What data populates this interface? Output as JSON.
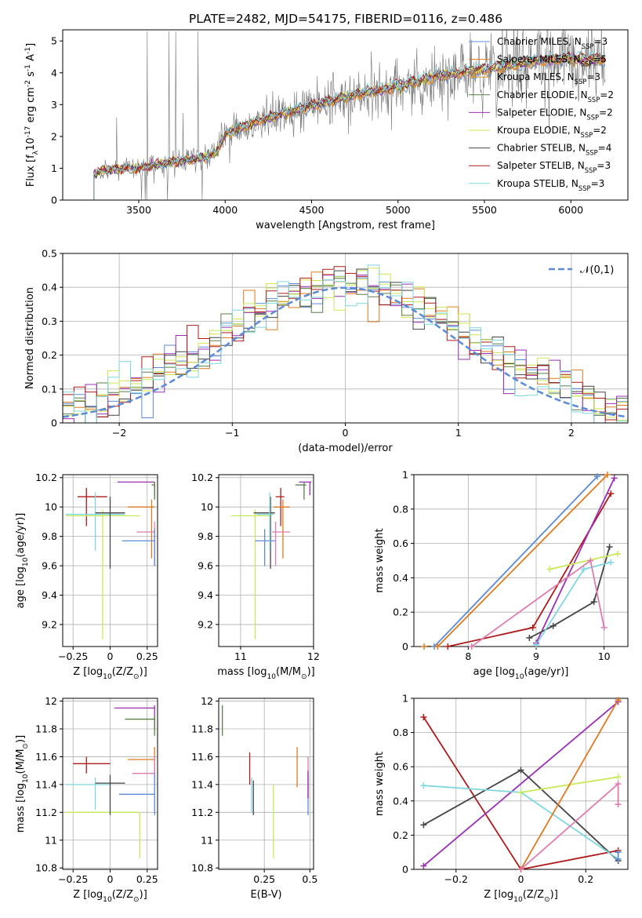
{
  "figure_title": "PLATE=2482, MJD=54175, FIBERID=0116, z=0.486",
  "colors": {
    "chabrier_miles": "#5b8bd8",
    "salpeter_miles": "#e07a1f",
    "kroupa_miles": "#e89c33",
    "chabrier_elodie": "#5a7f4a",
    "salpeter_elodie": "#9b2fb5",
    "kroupa_elodie": "#d6e24c",
    "chabrier_stelib": "#444444",
    "salpeter_stelib": "#b01a1a",
    "kroupa_stelib": "#7fd7e0",
    "pink": "#e07ab0",
    "lime": "#c8ea5a",
    "gauss": "#5b8bd8"
  },
  "chart_data": [
    {
      "id": "spectrum",
      "type": "line",
      "xlabel": "wavelength [Angstrom, rest frame]",
      "ylabel": "Flux [f$_\\lambda$10$^{-17}$ erg cm$^{-2}$ s$^{-1}$ A$^{-1}$]",
      "xlim": [
        3060,
        6330
      ],
      "ylim": [
        0,
        5.35
      ],
      "xticks": [
        3500,
        4000,
        4500,
        5000,
        5500,
        6000
      ],
      "yticks": [
        0,
        1,
        2,
        3,
        4,
        5
      ],
      "grid": false,
      "legend_position": "top-right",
      "legend": [
        "Chabrier MILES, N$_{SSP}$=3",
        "Salpeter MILES, N$_{SSP}$=5",
        "Kroupa MILES, N$_{SSP}$=3",
        "Chabrier ELODIE, N$_{SSP}$=2",
        "Salpeter ELODIE, N$_{SSP}$=2",
        "Kroupa ELODIE, N$_{SSP}$=2",
        "Chabrier STELIB, N$_{SSP}$=4",
        "Salpeter STELIB, N$_{SSP}$=3",
        "Kroupa STELIB, N$_{SSP}$=3"
      ],
      "model_continuum": {
        "x": [
          3240,
          3300,
          3500,
          3700,
          3900,
          3950,
          4000,
          4200,
          4500,
          4800,
          5000,
          5200,
          5500,
          5800,
          6000,
          6200
        ],
        "y": [
          0.8,
          0.95,
          1.0,
          1.2,
          1.35,
          1.5,
          2.05,
          2.5,
          2.95,
          3.35,
          3.55,
          3.85,
          4.1,
          4.35,
          4.45,
          4.4
        ]
      }
    },
    {
      "id": "residuals",
      "type": "line",
      "xlabel": "(data-model)/error",
      "ylabel": "Normed distribution",
      "xlim": [
        -2.5,
        2.5
      ],
      "ylim": [
        0,
        0.5
      ],
      "xticks": [
        -2,
        -1,
        0,
        1,
        2
      ],
      "yticks": [
        0.0,
        0.1,
        0.2,
        0.3,
        0.4,
        0.5
      ],
      "grid": true,
      "legend_position": "top-right",
      "legend": [
        "$\\mathcal{N}(0,1)$"
      ]
    },
    {
      "id": "age_vs_Z",
      "type": "scatter",
      "xlabel": "Z [log$_{10}$($Z/Z_\\odot$)]",
      "ylabel": "age  [log$_{10}$($age/yr$)]",
      "xlim": [
        -0.32,
        0.32
      ],
      "ylim": [
        9.05,
        10.22
      ],
      "xticks": [
        -0.25,
        0.0,
        0.25
      ],
      "yticks": [
        9.2,
        9.4,
        9.6,
        9.8,
        10.0,
        10.2
      ],
      "grid": true,
      "points": [
        {
          "c": "salpeter_stelib",
          "x": -0.16,
          "xe": [
            -0.22,
            -0.02
          ],
          "y": 10.07,
          "ye": [
            9.87,
            10.13
          ]
        },
        {
          "c": "kroupa_stelib",
          "x": -0.1,
          "xe": [
            -0.3,
            0.1
          ],
          "y": 9.95,
          "ye": [
            9.7,
            10.1
          ]
        },
        {
          "c": "lime",
          "x": -0.05,
          "xe": [
            -0.3,
            0.2
          ],
          "y": 9.94,
          "ye": [
            9.1,
            9.98
          ]
        },
        {
          "c": "chabrier_stelib",
          "x": 0.0,
          "xe": [
            -0.1,
            0.1
          ],
          "y": 9.96,
          "ye": [
            9.58,
            10.07
          ]
        },
        {
          "c": "salpeter_elodie",
          "x": 0.3,
          "xe": [
            0.05,
            0.3
          ],
          "y": 10.17,
          "ye": [
            10.08,
            10.17
          ]
        },
        {
          "c": "chabrier_elodie",
          "x": 0.3,
          "xe": [
            0.28,
            0.3
          ],
          "y": 10.15,
          "ye": [
            10.05,
            10.17
          ]
        },
        {
          "c": "salpeter_miles",
          "x": 0.28,
          "xe": [
            0.12,
            0.3
          ],
          "y": 10.0,
          "ye": [
            9.65,
            10.05
          ]
        },
        {
          "c": "pink",
          "x": 0.3,
          "xe": [
            0.18,
            0.3
          ],
          "y": 9.83,
          "ye": [
            9.6,
            9.9
          ]
        },
        {
          "c": "chabrier_miles",
          "x": 0.3,
          "xe": [
            0.08,
            0.3
          ],
          "y": 9.77,
          "ye": [
            9.6,
            9.85
          ]
        }
      ]
    },
    {
      "id": "age_vs_mass",
      "type": "scatter",
      "xlabel": "mass [log$_{10}$($M/M_\\odot$)]",
      "ylabel": "",
      "xlim": [
        10.7,
        12.0
      ],
      "ylim": [
        9.05,
        10.22
      ],
      "xticks": [
        11,
        12
      ],
      "yticks": [
        9.2,
        9.4,
        9.6,
        9.8,
        10.0,
        10.2
      ],
      "grid": true,
      "points": [
        {
          "c": "lime",
          "x": 11.2,
          "xe": [
            10.87,
            11.4
          ],
          "y": 9.94,
          "ye": [
            9.1,
            9.98
          ]
        },
        {
          "c": "chabrier_stelib",
          "x": 11.41,
          "xe": [
            11.18,
            11.47
          ],
          "y": 9.96,
          "ye": [
            9.58,
            10.07
          ]
        },
        {
          "c": "chabrier_miles",
          "x": 11.33,
          "xe": [
            11.2,
            11.48
          ],
          "y": 9.77,
          "ye": [
            9.6,
            9.85
          ]
        },
        {
          "c": "kroupa_stelib",
          "x": 11.4,
          "xe": [
            11.22,
            11.45
          ],
          "y": 9.95,
          "ye": [
            9.7,
            10.1
          ]
        },
        {
          "c": "salpeter_stelib",
          "x": 11.55,
          "xe": [
            11.48,
            11.6
          ],
          "y": 10.07,
          "ye": [
            9.87,
            10.13
          ]
        },
        {
          "c": "salpeter_miles",
          "x": 11.58,
          "xe": [
            11.45,
            11.67
          ],
          "y": 10.0,
          "ye": [
            9.65,
            10.05
          ]
        },
        {
          "c": "pink",
          "x": 11.48,
          "xe": [
            11.43,
            11.68
          ],
          "y": 9.83,
          "ye": [
            9.6,
            9.9
          ]
        },
        {
          "c": "salpeter_elodie",
          "x": 11.95,
          "xe": [
            11.8,
            11.97
          ],
          "y": 10.17,
          "ye": [
            10.08,
            10.17
          ]
        },
        {
          "c": "chabrier_elodie",
          "x": 11.87,
          "xe": [
            11.75,
            11.9
          ],
          "y": 10.15,
          "ye": [
            10.05,
            10.17
          ]
        }
      ]
    },
    {
      "id": "weight_vs_age",
      "type": "line",
      "xlabel": "age  [log$_{10}$($age/yr$)]",
      "ylabel": "mass weight",
      "xlim": [
        7.2,
        10.35
      ],
      "ylim": [
        0,
        1.0
      ],
      "xticks": [
        8,
        9,
        10
      ],
      "yticks": [
        0.0,
        0.2,
        0.4,
        0.6,
        0.8,
        1.0
      ],
      "grid": true,
      "series": [
        {
          "c": "chabrier_miles",
          "x": [
            7.5,
            9.9
          ],
          "y": [
            0.0,
            0.99
          ]
        },
        {
          "c": "salpeter_miles",
          "x": [
            7.35,
            7.55,
            10.05
          ],
          "y": [
            0.0,
            0.0,
            1.0
          ]
        },
        {
          "c": "salpeter_stelib",
          "x": [
            7.7,
            8.95,
            10.1
          ],
          "y": [
            0.0,
            0.11,
            0.89
          ]
        },
        {
          "c": "salpeter_elodie",
          "x": [
            9.0,
            10.15
          ],
          "y": [
            0.02,
            0.98
          ]
        },
        {
          "c": "chabrier_stelib",
          "x": [
            8.9,
            9.25,
            9.85,
            10.08
          ],
          "y": [
            0.05,
            0.12,
            0.26,
            0.58
          ]
        },
        {
          "c": "lime",
          "x": [
            9.2,
            10.2
          ],
          "y": [
            0.45,
            0.54
          ]
        },
        {
          "c": "kroupa_stelib",
          "x": [
            9.0,
            9.7,
            10.1
          ],
          "y": [
            0.01,
            0.45,
            0.49
          ]
        },
        {
          "c": "pink",
          "x": [
            8.05,
            9.8,
            10.0
          ],
          "y": [
            0.0,
            0.5,
            0.11
          ]
        }
      ]
    },
    {
      "id": "mass_vs_Z",
      "type": "scatter",
      "xlabel": "Z [log$_{10}$($Z/Z_\\odot$)]",
      "ylabel": "mass [log$_{10}$($M/M_\\odot$)]",
      "xlim": [
        -0.32,
        0.32
      ],
      "ylim": [
        10.79,
        12.02
      ],
      "xticks": [
        -0.25,
        0.0,
        0.25
      ],
      "yticks": [
        10.8,
        11.0,
        11.2,
        11.4,
        11.6,
        11.8,
        12.0
      ],
      "grid": true,
      "points": [
        {
          "c": "salpeter_stelib",
          "x": -0.16,
          "xe": [
            -0.25,
            0.0
          ],
          "y": 11.55,
          "ye": [
            11.48,
            11.6
          ]
        },
        {
          "c": "kroupa_stelib",
          "x": -0.1,
          "xe": [
            -0.3,
            0.0
          ],
          "y": 11.4,
          "ye": [
            11.22,
            11.45
          ]
        },
        {
          "c": "lime",
          "x": 0.2,
          "xe": [
            -0.3,
            0.2
          ],
          "y": 11.2,
          "ye": [
            10.87,
            11.2
          ]
        },
        {
          "c": "chabrier_stelib",
          "x": 0.0,
          "xe": [
            -0.1,
            0.1
          ],
          "y": 11.41,
          "ye": [
            11.18,
            11.47
          ]
        },
        {
          "c": "salpeter_elodie",
          "x": 0.3,
          "xe": [
            0.03,
            0.3
          ],
          "y": 11.95,
          "ye": [
            11.8,
            11.97
          ]
        },
        {
          "c": "chabrier_elodie",
          "x": 0.3,
          "xe": [
            0.1,
            0.3
          ],
          "y": 11.87,
          "ye": [
            11.75,
            11.9
          ]
        },
        {
          "c": "salpeter_miles",
          "x": 0.3,
          "xe": [
            0.12,
            0.3
          ],
          "y": 11.58,
          "ye": [
            11.45,
            11.67
          ]
        },
        {
          "c": "pink",
          "x": 0.3,
          "xe": [
            0.15,
            0.3
          ],
          "y": 11.48,
          "ye": [
            11.43,
            11.6
          ]
        },
        {
          "c": "chabrier_miles",
          "x": 0.3,
          "xe": [
            0.06,
            0.3
          ],
          "y": 11.33,
          "ye": [
            11.18,
            11.48
          ]
        }
      ]
    },
    {
      "id": "mass_vs_ebv",
      "type": "scatter",
      "xlabel": "E(B-V)",
      "ylabel": "",
      "xlim": [
        0.0,
        0.52
      ],
      "ylim": [
        10.79,
        12.02
      ],
      "xticks": [
        0.25,
        0.5
      ],
      "yticks": [
        10.8,
        11.0,
        11.2,
        11.4,
        11.6,
        11.8,
        12.0
      ],
      "grid": true,
      "points": [
        {
          "c": "chabrier_elodie",
          "x": 0.02,
          "xe": [
            0.02,
            0.02
          ],
          "y": 11.87,
          "ye": [
            11.75,
            11.97
          ]
        },
        {
          "c": "salpeter_stelib",
          "x": 0.17,
          "xe": [
            0.17,
            0.17
          ],
          "y": 11.55,
          "ye": [
            11.4,
            11.63
          ]
        },
        {
          "c": "kroupa_stelib",
          "x": 0.18,
          "xe": [
            0.18,
            0.18
          ],
          "y": 11.4,
          "ye": [
            11.2,
            11.45
          ]
        },
        {
          "c": "chabrier_stelib",
          "x": 0.19,
          "xe": [
            0.19,
            0.19
          ],
          "y": 11.3,
          "ye": [
            11.18,
            11.43
          ]
        },
        {
          "c": "lime",
          "x": 0.3,
          "xe": [
            0.3,
            0.3
          ],
          "y": 11.2,
          "ye": [
            10.87,
            11.4
          ]
        },
        {
          "c": "salpeter_miles",
          "x": 0.43,
          "xe": [
            0.43,
            0.43
          ],
          "y": 11.5,
          "ye": [
            11.38,
            11.67
          ]
        },
        {
          "c": "chabrier_miles",
          "x": 0.49,
          "xe": [
            0.49,
            0.49
          ],
          "y": 11.33,
          "ye": [
            11.18,
            11.48
          ]
        },
        {
          "c": "pink",
          "x": 0.49,
          "xe": [
            0.49,
            0.49
          ],
          "y": 11.45,
          "ye": [
            11.3,
            11.6
          ]
        },
        {
          "c": "salpeter_elodie",
          "x": 0.49,
          "xe": [
            0.49,
            0.49
          ],
          "y": 11.4,
          "ye": [
            11.3,
            11.5
          ]
        }
      ]
    },
    {
      "id": "weight_vs_Z",
      "type": "line",
      "xlabel": "Z [log$_{10}$($Z/Z_\\odot$)]",
      "ylabel": "mass weight",
      "xlim": [
        -0.33,
        0.33
      ],
      "ylim": [
        0,
        1.0
      ],
      "xticks": [
        -0.2,
        0.0,
        0.2
      ],
      "yticks": [
        0.0,
        0.2,
        0.4,
        0.6,
        0.8,
        1.0
      ],
      "grid": true,
      "series": [
        {
          "c": "salpeter_stelib",
          "x": [
            -0.3,
            0.0,
            0.3
          ],
          "y": [
            0.89,
            0.0,
            0.11
          ]
        },
        {
          "c": "salpeter_elodie",
          "x": [
            -0.3,
            0.3
          ],
          "y": [
            0.02,
            0.98
          ]
        },
        {
          "c": "chabrier_stelib",
          "x": [
            -0.3,
            0.0,
            0.3
          ],
          "y": [
            0.26,
            0.58,
            0.05
          ]
        },
        {
          "c": "kroupa_stelib",
          "x": [
            -0.3,
            0.0,
            0.3
          ],
          "y": [
            0.49,
            0.45,
            0.06
          ]
        },
        {
          "c": "lime",
          "x": [
            0.0,
            0.3
          ],
          "y": [
            0.45,
            0.54
          ]
        },
        {
          "c": "salpeter_miles",
          "x": [
            0.0,
            0.3
          ],
          "y": [
            0.0,
            0.99
          ]
        },
        {
          "c": "pink",
          "x": [
            0.0,
            0.3,
            0.3
          ],
          "y": [
            0.0,
            0.5,
            0.38
          ]
        },
        {
          "c": "chabrier_miles",
          "x": [
            0.3,
            0.3
          ],
          "y": [
            0.06,
            0.1
          ]
        }
      ]
    }
  ]
}
